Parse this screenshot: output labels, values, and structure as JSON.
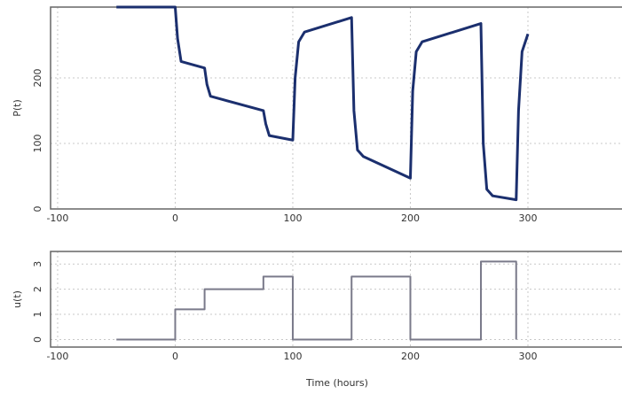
{
  "chart_data": [
    {
      "type": "line",
      "ylabel": "P(t)",
      "x": [
        -50,
        0,
        2,
        5,
        25,
        27,
        30,
        75,
        77,
        80,
        100,
        102,
        105,
        110,
        150,
        152,
        155,
        160,
        200,
        202,
        205,
        210,
        260,
        262,
        265,
        270,
        290,
        292,
        295,
        300
      ],
      "series": [
        {
          "name": "P",
          "color": "#1b2f6e",
          "values": [
            308,
            308,
            260,
            225,
            215,
            190,
            172,
            150,
            130,
            112,
            105,
            200,
            255,
            270,
            292,
            150,
            90,
            80,
            47,
            180,
            240,
            255,
            283,
            100,
            30,
            20,
            14,
            150,
            240,
            267
          ]
        }
      ],
      "xlim": [
        -106,
        380
      ],
      "xticks": [
        -100,
        0,
        100,
        200,
        300
      ],
      "ylim": [
        0,
        308
      ],
      "yticks": [
        0,
        100,
        200
      ],
      "grid": true
    },
    {
      "type": "line",
      "ylabel": "u(t)",
      "xlabel": "Time (hours)",
      "x": [
        -50,
        0,
        0,
        25,
        25,
        75,
        75,
        100,
        100,
        150,
        150,
        200,
        200,
        260,
        260,
        290,
        290
      ],
      "series": [
        {
          "name": "u",
          "color": "#7a7a8a",
          "values": [
            0,
            0,
            1.2,
            1.2,
            2,
            2,
            2.5,
            2.5,
            0,
            0,
            2.5,
            2.5,
            0,
            0,
            3.1,
            3.1,
            0
          ]
        }
      ],
      "xlim": [
        -106,
        380
      ],
      "xticks": [
        -100,
        0,
        100,
        200,
        300
      ],
      "ylim": [
        -0.3,
        3.5
      ],
      "yticks": [
        0,
        1,
        2,
        3
      ],
      "grid": true
    }
  ]
}
